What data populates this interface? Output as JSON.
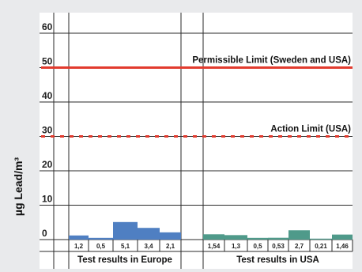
{
  "chart_data": {
    "type": "bar",
    "ylabel": "µg Lead/m³",
    "ylim": [
      0,
      60
    ],
    "yticks": [
      "0",
      "10",
      "20",
      "30",
      "40",
      "50",
      "60"
    ],
    "grid": true,
    "groups": [
      {
        "name": "Test results in Europe",
        "labels": [
          "1,2",
          "0,5",
          "5,1",
          "3,4",
          "2,1"
        ],
        "values": [
          1.2,
          0.5,
          5.1,
          3.4,
          2.1
        ],
        "color": "#4f7fc2"
      },
      {
        "name": "Test results in USA",
        "labels": [
          "1,54",
          "1,3",
          "0,5",
          "0,53",
          "2,7",
          "0,21",
          "1,46"
        ],
        "values": [
          1.54,
          1.3,
          0.5,
          0.53,
          2.7,
          0.21,
          1.46
        ],
        "color": "#4f9a8a"
      }
    ],
    "limits": [
      {
        "label": "Permissible Limit (Sweden and USA)",
        "value": 50,
        "style": "solid",
        "color": "#e23b2e"
      },
      {
        "label": "Action Limit (USA)",
        "value": 30,
        "style": "dotted",
        "color": "#e23b2e"
      }
    ]
  }
}
